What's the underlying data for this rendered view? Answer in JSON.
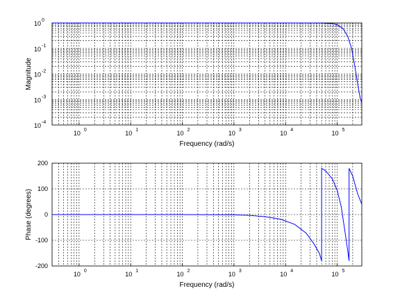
{
  "chart_data": [
    {
      "type": "line",
      "xscale": "log",
      "yscale": "log",
      "xlim": [
        0.3,
        300000
      ],
      "ylim": [
        0.0001,
        1
      ],
      "grid": true,
      "xlabel": "Frequency (rad/s)",
      "ylabel": "Magnitude",
      "x_ticks": [
        {
          "base": "10",
          "exp": "0"
        },
        {
          "base": "10",
          "exp": "1"
        },
        {
          "base": "10",
          "exp": "2"
        },
        {
          "base": "10",
          "exp": "3"
        },
        {
          "base": "10",
          "exp": "4"
        },
        {
          "base": "10",
          "exp": "5"
        }
      ],
      "y_ticks": [
        {
          "base": "10",
          "exp": "-4"
        },
        {
          "base": "10",
          "exp": "-3"
        },
        {
          "base": "10",
          "exp": "-2"
        },
        {
          "base": "10",
          "exp": "-1"
        },
        {
          "base": "10",
          "exp": "0"
        }
      ],
      "series": [
        {
          "color": "#0000ff",
          "x": [
            0.3,
            1,
            10,
            100,
            1000,
            10000,
            50000,
            80000,
            100000,
            130000,
            160000,
            190000,
            220000,
            250000,
            280000,
            300000
          ],
          "y": [
            1,
            1,
            1,
            1,
            1,
            1,
            0.99,
            0.95,
            0.85,
            0.6,
            0.3,
            0.1,
            0.02,
            0.004,
            0.0011,
            0.0008
          ]
        }
      ]
    },
    {
      "type": "line",
      "xscale": "log",
      "yscale": "linear",
      "xlim": [
        0.3,
        300000
      ],
      "ylim": [
        -200,
        200
      ],
      "grid": true,
      "xlabel": "Frequency (rad/s)",
      "ylabel": "Phase (degrees)",
      "x_ticks": [
        {
          "base": "10",
          "exp": "0"
        },
        {
          "base": "10",
          "exp": "1"
        },
        {
          "base": "10",
          "exp": "2"
        },
        {
          "base": "10",
          "exp": "3"
        },
        {
          "base": "10",
          "exp": "4"
        },
        {
          "base": "10",
          "exp": "5"
        }
      ],
      "y_ticks": [
        "-200",
        "-100",
        "0",
        "100",
        "200"
      ],
      "series": [
        {
          "color": "#0000ff",
          "x": [
            0.3,
            1,
            10,
            100,
            1000,
            2000,
            4000,
            8000,
            15000,
            25000,
            35000,
            45000,
            50000,
            50001,
            60000,
            80000,
            100000,
            120000,
            140000,
            160000,
            170000,
            170001,
            200000,
            250000,
            300000
          ],
          "y": [
            0,
            0,
            0,
            0,
            -1,
            -3,
            -8,
            -18,
            -38,
            -72,
            -112,
            -150,
            -180,
            180,
            170,
            140,
            95,
            30,
            -60,
            -140,
            -180,
            180,
            150,
            80,
            40
          ]
        }
      ]
    }
  ]
}
